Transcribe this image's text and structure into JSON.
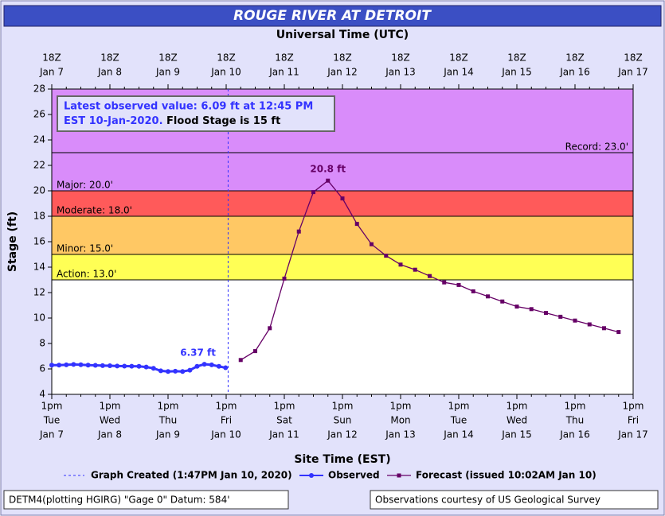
{
  "chart_data": {
    "type": "hydrograph",
    "title": "ROUGE RIVER AT DETROIT",
    "top_axis_label": "Universal Time (UTC)",
    "x_axis_label": "Site Time (EST)",
    "y_axis_label": "Stage (ft)",
    "xlim": [
      0,
      240
    ],
    "xticks": [
      {
        "value": 0,
        "label": [
          "1pm",
          "Tue",
          "Jan 7"
        ]
      },
      {
        "value": 24,
        "label": [
          "1pm",
          "Wed",
          "Jan 8"
        ]
      },
      {
        "value": 48,
        "label": [
          "1pm",
          "Thu",
          "Jan 9"
        ]
      },
      {
        "value": 72,
        "label": [
          "1pm",
          "Fri",
          "Jan 10"
        ]
      },
      {
        "value": 96,
        "label": [
          "1pm",
          "Sat",
          "Jan 11"
        ]
      },
      {
        "value": 120,
        "label": [
          "1pm",
          "Sun",
          "Jan 12"
        ]
      },
      {
        "value": 144,
        "label": [
          "1pm",
          "Mon",
          "Jan 13"
        ]
      },
      {
        "value": 168,
        "label": [
          "1pm",
          "Tue",
          "Jan 14"
        ]
      },
      {
        "value": 192,
        "label": [
          "1pm",
          "Wed",
          "Jan 15"
        ]
      },
      {
        "value": 216,
        "label": [
          "1pm",
          "Thu",
          "Jan 16"
        ]
      },
      {
        "value": 240,
        "label": [
          "1pm",
          "Fri",
          "Jan 17"
        ]
      }
    ],
    "x2ticks": [
      {
        "value": 0,
        "label": [
          "18Z",
          "Jan 7"
        ]
      },
      {
        "value": 24,
        "label": [
          "18Z",
          "Jan 8"
        ]
      },
      {
        "value": 48,
        "label": [
          "18Z",
          "Jan 9"
        ]
      },
      {
        "value": 72,
        "label": [
          "18Z",
          "Jan 10"
        ]
      },
      {
        "value": 96,
        "label": [
          "18Z",
          "Jan 11"
        ]
      },
      {
        "value": 120,
        "label": [
          "18Z",
          "Jan 12"
        ]
      },
      {
        "value": 144,
        "label": [
          "18Z",
          "Jan 13"
        ]
      },
      {
        "value": 168,
        "label": [
          "18Z",
          "Jan 14"
        ]
      },
      {
        "value": 192,
        "label": [
          "18Z",
          "Jan 15"
        ]
      },
      {
        "value": 216,
        "label": [
          "18Z",
          "Jan 16"
        ]
      },
      {
        "value": 240,
        "label": [
          "18Z",
          "Jan 17"
        ]
      }
    ],
    "ylim": [
      4,
      28
    ],
    "yticks": [
      4,
      6,
      8,
      10,
      12,
      14,
      16,
      18,
      20,
      22,
      24,
      26,
      28
    ],
    "flood_categories": [
      {
        "label": "Action: 13.0'",
        "value": 13,
        "color": "#ffff55"
      },
      {
        "label": "Minor: 15.0'",
        "value": 15,
        "color": "#ffc864"
      },
      {
        "label": "Moderate: 18.0'",
        "value": 18,
        "color": "#ff5a5a"
      },
      {
        "label": "Major: 20.0'",
        "value": 20,
        "color": "#d98cfa"
      }
    ],
    "record": {
      "label": "Record: 23.0'",
      "value": 23
    },
    "created_line": {
      "x": 72.8,
      "color": "#3333ff"
    },
    "info": [
      "Latest observed value: 6.09 ft at 12:45 PM",
      "EST 10-Jan-2020.",
      "Flood Stage is 15 ft"
    ],
    "series": [
      {
        "name": "Observed",
        "color": "#3333ff",
        "max_label": "6.37 ft",
        "x": [
          0,
          3,
          6,
          9,
          12,
          15,
          18,
          21,
          24,
          27,
          30,
          33,
          36,
          39,
          42,
          45,
          48,
          51,
          54,
          57,
          60,
          63,
          66,
          69,
          71.75
        ],
        "values": [
          6.3,
          6.3,
          6.32,
          6.35,
          6.33,
          6.3,
          6.28,
          6.26,
          6.25,
          6.23,
          6.22,
          6.21,
          6.2,
          6.15,
          6.05,
          5.85,
          5.8,
          5.82,
          5.8,
          5.9,
          6.2,
          6.37,
          6.32,
          6.2,
          6.09
        ]
      },
      {
        "name": "Forecast (issued 10:02AM Jan 10)",
        "color": "#660066",
        "max_label": "20.8 ft",
        "x": [
          78,
          84,
          90,
          96,
          102,
          108,
          114,
          120,
          126,
          132,
          138,
          144,
          150,
          156,
          162,
          168,
          174,
          180,
          186,
          192,
          198,
          204,
          210,
          216,
          222,
          228,
          234
        ],
        "values": [
          6.7,
          7.4,
          9.2,
          13.1,
          16.8,
          19.9,
          20.8,
          19.4,
          17.4,
          15.8,
          14.9,
          14.2,
          13.8,
          13.3,
          12.8,
          12.6,
          12.1,
          11.7,
          11.3,
          10.9,
          10.7,
          10.4,
          10.1,
          9.8,
          9.5,
          9.2,
          8.9
        ]
      }
    ],
    "legend_created": "Graph Created (1:47PM Jan 10, 2020)",
    "footer_left": "DETM4(plotting HGIRG) \"Gage 0\" Datum: 584'",
    "footer_right": "Observations courtesy of US Geological Survey"
  }
}
